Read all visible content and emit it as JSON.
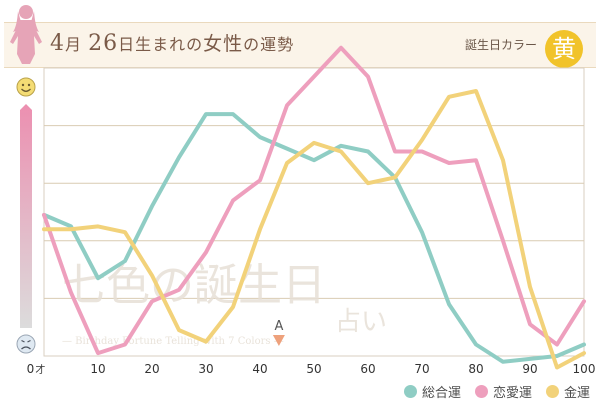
{
  "header": {
    "month": "4",
    "month_unit": "月",
    "day": "26",
    "day_suffix": "日生まれの",
    "gender": "女性",
    "title_suffix": "の運勢",
    "birth_color_label": "誕生日カラー",
    "birth_color_char": "黄",
    "birth_color_hex": "#f1c32a"
  },
  "watermark": {
    "main": "七色の誕生日",
    "sub": "占い",
    "caption": "— Birthday Fortune Telling with 7 Colors —"
  },
  "chart_data": {
    "type": "line",
    "x_unit": "才",
    "x_ticks": [
      0,
      10,
      20,
      30,
      40,
      50,
      60,
      70,
      80,
      90,
      100
    ],
    "xlim": [
      0,
      100
    ],
    "ylim": [
      0,
      100
    ],
    "grid": true,
    "legend_position": "bottom-right",
    "marker": {
      "label": "A",
      "x": 43.5
    },
    "scale_icons": {
      "top": "smile-face-icon",
      "bottom": "worried-face-icon"
    },
    "series": [
      {
        "name": "総合運",
        "color": "#8fcdc4",
        "x": [
          0,
          5,
          10,
          15,
          20,
          25,
          30,
          35,
          40,
          45,
          50,
          55,
          60,
          65,
          70,
          75,
          80,
          85,
          90,
          95,
          100
        ],
        "y": [
          49,
          45,
          27,
          33,
          52,
          69,
          84,
          84,
          76,
          72,
          68,
          73,
          71,
          62,
          43,
          18,
          4,
          -2,
          -1,
          0,
          4
        ]
      },
      {
        "name": "恋愛運",
        "color": "#ee9fbd",
        "x": [
          0,
          5,
          10,
          15,
          20,
          25,
          30,
          35,
          40,
          45,
          50,
          55,
          60,
          65,
          70,
          75,
          80,
          85,
          90,
          95,
          100
        ],
        "y": [
          49,
          22,
          1,
          4,
          19,
          23,
          36,
          54,
          61,
          87,
          97,
          107,
          97,
          71,
          71,
          67,
          68,
          40,
          11,
          4,
          19
        ]
      },
      {
        "name": "金運",
        "color": "#f2d27a",
        "x": [
          0,
          5,
          10,
          15,
          20,
          25,
          30,
          35,
          40,
          45,
          50,
          55,
          60,
          65,
          70,
          75,
          80,
          85,
          90,
          95,
          100
        ],
        "y": [
          44,
          44,
          45,
          43,
          28,
          9,
          5,
          17,
          44,
          67,
          74,
          71,
          60,
          62,
          75,
          90,
          92,
          68,
          24,
          -4,
          1
        ]
      }
    ]
  }
}
